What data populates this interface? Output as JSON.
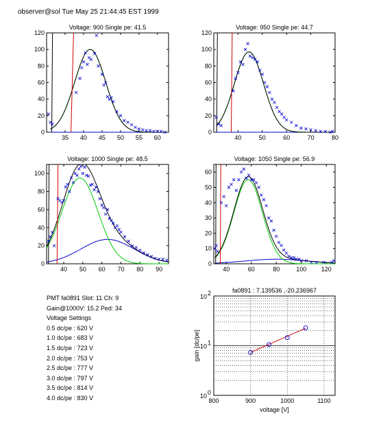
{
  "header": {
    "text": "observer@sol  Tue May 25 21:44:45 EST 1999"
  },
  "colors": {
    "fit_total": "#000000",
    "gaussian": "#00cc00",
    "background": "#0000cc",
    "data_marker": "#0000cc",
    "cut_line": "#cc0000",
    "gain_fit": "#cc0000"
  },
  "chart_data": [
    {
      "type": "scatter",
      "title": "Voltage: 900 Single pe: 41.5",
      "xlim": [
        30,
        63
      ],
      "ylim": [
        0,
        120
      ],
      "xticks": [
        35,
        40,
        45,
        50,
        55,
        60
      ],
      "yticks": [
        0,
        20,
        40,
        60,
        80,
        100,
        120
      ],
      "fit": {
        "gauss_amp": 100,
        "gauss_mu": 41.8,
        "gauss_sigma": 4.2,
        "bg_amp": 0,
        "bg_mu": 45,
        "bg_sigma": 8,
        "start": 31
      },
      "cut_lines": [
        {
          "x": [
            36.6,
            37.3
          ],
          "color": "red"
        },
        {
          "x": [
            31.4,
            31.6
          ],
          "color": "black"
        }
      ],
      "points": [
        [
          30.5,
          22
        ],
        [
          31,
          12
        ],
        [
          31.5,
          10
        ],
        [
          38,
          48
        ],
        [
          39,
          65
        ],
        [
          39.5,
          78
        ],
        [
          40,
          85
        ],
        [
          40.5,
          96
        ],
        [
          41,
          82
        ],
        [
          41.5,
          90
        ],
        [
          42,
          88
        ],
        [
          43,
          95
        ],
        [
          43.5,
          117
        ],
        [
          44,
          80
        ],
        [
          45,
          70
        ],
        [
          45.5,
          57
        ],
        [
          46,
          60
        ],
        [
          46.5,
          43
        ],
        [
          47,
          40
        ],
        [
          47.5,
          42
        ],
        [
          48,
          37
        ],
        [
          49,
          25
        ],
        [
          50,
          20
        ],
        [
          51,
          14
        ],
        [
          52,
          12
        ],
        [
          53,
          9
        ],
        [
          54,
          6
        ],
        [
          55,
          4
        ],
        [
          56,
          3
        ],
        [
          57,
          2
        ],
        [
          58,
          2
        ],
        [
          59,
          1
        ],
        [
          60,
          1
        ],
        [
          61,
          1
        ],
        [
          62,
          0
        ]
      ]
    },
    {
      "type": "scatter",
      "title": "Voltage: 950 Single pe: 44.7",
      "xlim": [
        30,
        80
      ],
      "ylim": [
        0,
        120
      ],
      "xticks": [
        40,
        50,
        60,
        70,
        80
      ],
      "yticks": [
        0,
        20,
        40,
        60,
        80,
        100,
        120
      ],
      "fit": {
        "gauss_amp": 97,
        "gauss_mu": 44.5,
        "gauss_sigma": 6.0,
        "bg_amp": 0,
        "bg_mu": 50,
        "bg_sigma": 10,
        "start": 31
      },
      "cut_lines": [
        {
          "x": [
            37.2,
            37.6
          ],
          "color": "red"
        },
        {
          "x": [
            31.2,
            31.5
          ],
          "color": "black"
        }
      ],
      "points": [
        [
          31,
          18
        ],
        [
          32,
          10
        ],
        [
          33,
          8
        ],
        [
          38,
          50
        ],
        [
          39,
          65
        ],
        [
          40,
          72
        ],
        [
          41,
          85
        ],
        [
          42,
          82
        ],
        [
          43,
          100
        ],
        [
          44,
          107
        ],
        [
          45,
          92
        ],
        [
          46,
          90
        ],
        [
          47,
          88
        ],
        [
          48,
          85
        ],
        [
          49,
          75
        ],
        [
          50,
          70
        ],
        [
          51,
          60
        ],
        [
          52,
          55
        ],
        [
          53,
          48
        ],
        [
          54,
          40
        ],
        [
          55,
          36
        ],
        [
          56,
          30
        ],
        [
          57,
          25
        ],
        [
          58,
          22
        ],
        [
          59,
          18
        ],
        [
          60,
          15
        ],
        [
          62,
          12
        ],
        [
          64,
          8
        ],
        [
          66,
          5
        ],
        [
          68,
          4
        ],
        [
          70,
          3
        ],
        [
          72,
          2
        ],
        [
          74,
          1
        ],
        [
          76,
          1
        ],
        [
          78,
          0
        ],
        [
          79,
          1
        ]
      ]
    },
    {
      "type": "scatter",
      "title": "Voltage: 1000 Single pe: 48.5",
      "xlim": [
        31,
        95
      ],
      "ylim": [
        0,
        110
      ],
      "xticks": [
        40,
        50,
        60,
        70,
        80,
        90
      ],
      "yticks": [
        0,
        20,
        40,
        60,
        80,
        100
      ],
      "fit": {
        "gauss_amp": 95,
        "gauss_mu": 48.5,
        "gauss_sigma": 9.5,
        "bg_amp": 27,
        "bg_mu": 63,
        "bg_sigma": 14,
        "start": 31
      },
      "cut_lines": [
        {
          "x": [
            36.5,
            37.0
          ],
          "color": "red"
        },
        {
          "x": [
            32.0,
            32.3
          ],
          "color": "black"
        }
      ],
      "points": [
        [
          32,
          25
        ],
        [
          33,
          30
        ],
        [
          34,
          35
        ],
        [
          35,
          20
        ],
        [
          37,
          72
        ],
        [
          38,
          70
        ],
        [
          39,
          68
        ],
        [
          40,
          70
        ],
        [
          41,
          85
        ],
        [
          42,
          88
        ],
        [
          43,
          80
        ],
        [
          44,
          95
        ],
        [
          45,
          90
        ],
        [
          46,
          100
        ],
        [
          47,
          98
        ],
        [
          48,
          105
        ],
        [
          49,
          108
        ],
        [
          50,
          100
        ],
        [
          51,
          107
        ],
        [
          52,
          98
        ],
        [
          53,
          97
        ],
        [
          54,
          87
        ],
        [
          55,
          88
        ],
        [
          56,
          82
        ],
        [
          57,
          85
        ],
        [
          58,
          80
        ],
        [
          59,
          72
        ],
        [
          60,
          65
        ],
        [
          61,
          62
        ],
        [
          62,
          55
        ],
        [
          63,
          60
        ],
        [
          64,
          50
        ],
        [
          65,
          48
        ],
        [
          66,
          45
        ],
        [
          67,
          40
        ],
        [
          68,
          42
        ],
        [
          69,
          38
        ],
        [
          70,
          35
        ],
        [
          72,
          30
        ],
        [
          74,
          25
        ],
        [
          76,
          20
        ],
        [
          78,
          18
        ],
        [
          80,
          15
        ],
        [
          82,
          12
        ],
        [
          84,
          10
        ],
        [
          86,
          8
        ],
        [
          88,
          6
        ],
        [
          90,
          5
        ],
        [
          92,
          5
        ],
        [
          94,
          4
        ]
      ]
    },
    {
      "type": "scatter",
      "title": "Voltage: 1050 Single pe: 56.9",
      "xlim": [
        30,
        127
      ],
      "ylim": [
        0,
        65
      ],
      "xticks": [
        40,
        60,
        80,
        100,
        120
      ],
      "yticks": [
        0,
        10,
        20,
        30,
        40,
        50,
        60
      ],
      "fit": {
        "gauss_amp": 55,
        "gauss_mu": 57.5,
        "gauss_sigma": 11.5,
        "bg_amp": 3,
        "bg_mu": 80,
        "bg_sigma": 25,
        "start": 31
      },
      "cut_lines": [
        {
          "x": [
            35.2,
            35.6
          ],
          "color": "red"
        },
        {
          "x": [
            31.5,
            31.8
          ],
          "color": "black"
        }
      ],
      "points": [
        [
          31,
          10
        ],
        [
          32,
          12
        ],
        [
          33,
          8
        ],
        [
          36,
          40
        ],
        [
          38,
          44
        ],
        [
          40,
          38
        ],
        [
          42,
          50
        ],
        [
          44,
          52
        ],
        [
          46,
          55
        ],
        [
          48,
          48
        ],
        [
          50,
          55
        ],
        [
          52,
          60
        ],
        [
          54,
          62
        ],
        [
          56,
          56
        ],
        [
          58,
          58
        ],
        [
          60,
          55
        ],
        [
          62,
          55
        ],
        [
          64,
          53
        ],
        [
          66,
          50
        ],
        [
          68,
          45
        ],
        [
          70,
          42
        ],
        [
          72,
          38
        ],
        [
          74,
          30
        ],
        [
          76,
          28
        ],
        [
          78,
          22
        ],
        [
          80,
          18
        ],
        [
          82,
          14
        ],
        [
          84,
          12
        ],
        [
          86,
          9
        ],
        [
          88,
          7
        ],
        [
          90,
          5
        ],
        [
          92,
          4
        ],
        [
          94,
          4
        ],
        [
          96,
          3
        ],
        [
          98,
          3
        ],
        [
          100,
          2
        ],
        [
          104,
          2
        ],
        [
          108,
          1
        ],
        [
          112,
          1
        ],
        [
          118,
          1
        ],
        [
          124,
          1
        ],
        [
          126,
          2
        ]
      ]
    },
    {
      "type": "scatter",
      "title": "fa0891 : 7.139536 ,-20.236967",
      "xlabel": "voltage [V]",
      "ylabel": "gain [dc/pe]",
      "xlim": [
        800,
        1130
      ],
      "ylim_log": [
        1,
        100
      ],
      "yscale": "log",
      "xticks": [
        800,
        900,
        1000,
        1100
      ],
      "ytick_labels": [
        {
          "base": "10",
          "exp": "0",
          "value": 1
        },
        {
          "base": "10",
          "exp": "1",
          "value": 10
        },
        {
          "base": "10",
          "exp": "2",
          "value": 100
        }
      ],
      "grid": true,
      "points": [
        [
          900,
          7.3
        ],
        [
          950,
          10.5
        ],
        [
          1000,
          14.5
        ],
        [
          1050,
          22.8
        ]
      ],
      "fit_line": [
        [
          900,
          7.3
        ],
        [
          1050,
          22.5
        ]
      ]
    }
  ],
  "info": {
    "lines": [
      "PMT fa0891 Slot: 11 Ch: 9",
      "Gain@1000V: 15.2 Ped: 34",
      "Voltage Settings",
      "0.5 dc/pe : 620 V",
      "1.0 dc/pe : 683 V",
      "1.5 dc/pe : 723 V",
      "2.0 dc/pe : 753 V",
      "2.5 dc/pe : 777 V",
      "3.0 dc/pe : 797 V",
      "3.5 dc/pe : 814 V",
      "4.0 dc/pe : 830 V"
    ]
  }
}
